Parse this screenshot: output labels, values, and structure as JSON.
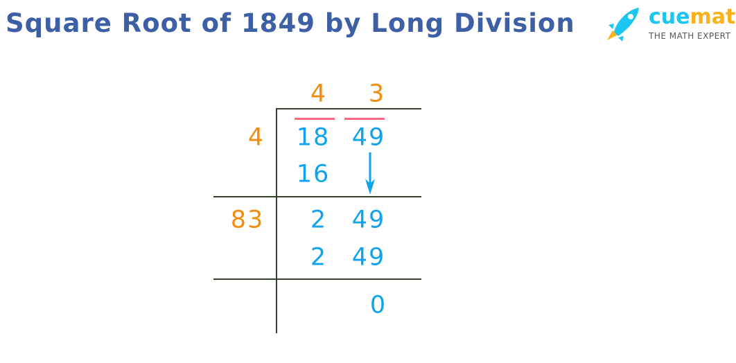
{
  "title": "Square Root of 1849 by Long Division",
  "logo": {
    "brand_part1": "cue",
    "brand_part2": "math",
    "tagline": "THE MATH EXPERT"
  },
  "colors": {
    "title": "#3d5fa5",
    "quotient_divisor": "#f28c0f",
    "dividend": "#0fa3ef",
    "pair_bar": "#ff6680",
    "lines": "#33402e"
  },
  "division": {
    "quotient": [
      "4",
      "3"
    ],
    "divisors": [
      "4",
      "83"
    ],
    "dividend_pairs": [
      "18",
      "49"
    ],
    "step1_subtract": "16",
    "step2_remainder": [
      "2",
      "49"
    ],
    "step2_subtract": [
      "2",
      "49"
    ],
    "final_remainder": "0"
  }
}
